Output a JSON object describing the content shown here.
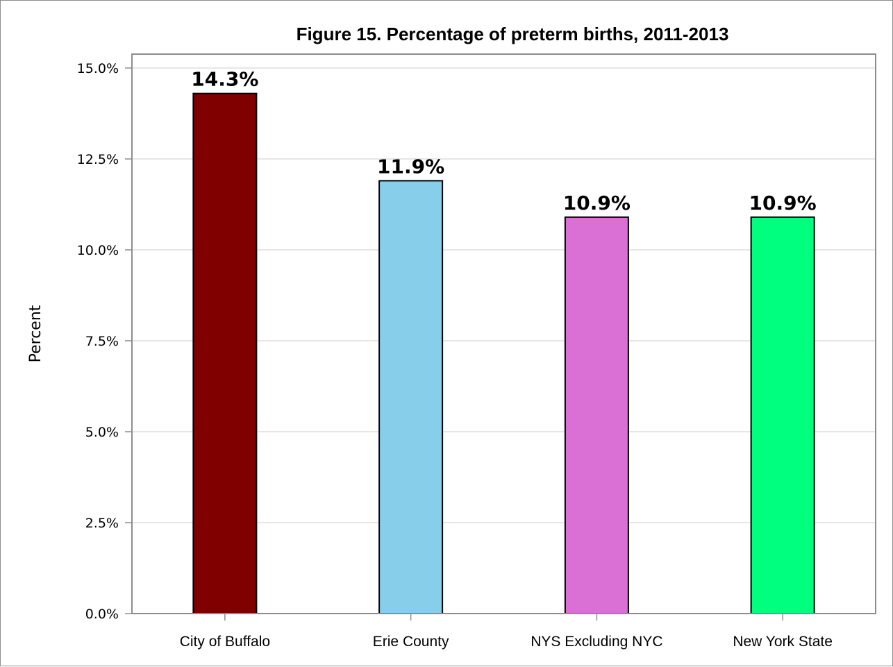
{
  "chart_data": {
    "type": "bar",
    "title": "Figure 15. Percentage of preterm births, 2011-2013",
    "ylabel": "Percent",
    "xlabel": "",
    "categories": [
      "City of Buffalo",
      "Erie County",
      "NYS Excluding NYC",
      "New York State"
    ],
    "values": [
      14.3,
      11.9,
      10.9,
      10.9
    ],
    "data_labels": [
      "14.3%",
      "11.9%",
      "10.9%",
      "10.9%"
    ],
    "colors": [
      "#800000",
      "#87ceeb",
      "#da70d6",
      "#00ff7f"
    ],
    "ylim": [
      0,
      15
    ],
    "yticks": [
      0,
      2.5,
      5,
      7.5,
      10,
      12.5,
      15
    ],
    "ytick_labels": [
      "0.0%",
      "2.5%",
      "5.0%",
      "7.5%",
      "10.0%",
      "12.5%",
      "15.0%"
    ],
    "grid": true,
    "legend": "none"
  }
}
